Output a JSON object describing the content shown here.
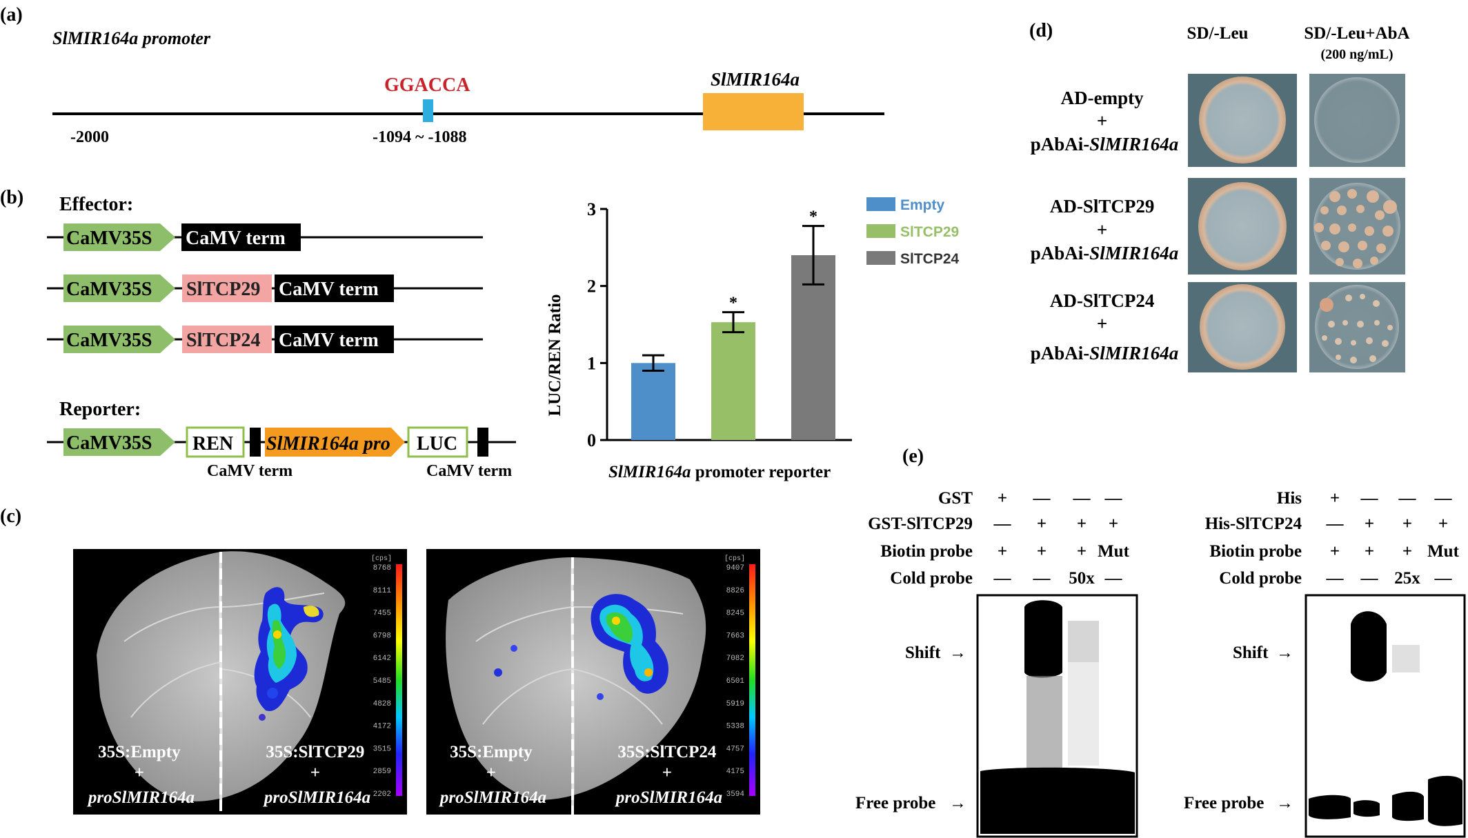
{
  "panel_a": {
    "label": "(a)",
    "title": "SlMIR164a promoter",
    "motif": "GGACCA",
    "gene": "SlMIR164a",
    "start": "-2000",
    "motif_position": "-1094 ~ -1088",
    "colors": {
      "motif_text": "#c8222a",
      "motif_box": "#2eaee0",
      "gene_box": "#f8b138"
    }
  },
  "panel_b": {
    "label": "(b)",
    "effector_title": "Effector:",
    "reporter_title": "Reporter:",
    "effectors": [
      {
        "promoter": "CaMV35S",
        "cds": "",
        "term": "CaMV term"
      },
      {
        "promoter": "CaMV35S",
        "cds": "SlTCP29",
        "term": "CaMV term"
      },
      {
        "promoter": "CaMV35S",
        "cds": "SlTCP24",
        "term": "CaMV term"
      }
    ],
    "reporter": {
      "promoter": "CaMV35S",
      "ren": "REN",
      "term1": "CaMV term",
      "pro_main": "SlMIR164a",
      "pro_suffix": " pro",
      "luc": "LUC",
      "term2": "CaMV term"
    },
    "colors": {
      "promoter": "#8fbe6a",
      "cds": "#f3a5a3",
      "term": "#000000",
      "pro": "#f39a1f",
      "box_border": "#8fbe4a"
    }
  },
  "chart_data": {
    "type": "bar",
    "categories": [
      "Empty",
      "SlTCP29",
      "SlTCP24"
    ],
    "values": [
      1.0,
      1.53,
      2.4
    ],
    "errors": [
      0.1,
      0.13,
      0.38
    ],
    "significance": [
      "",
      "*",
      "*"
    ],
    "colors": [
      "#4f8fc9",
      "#97bf68",
      "#7a7a7a"
    ],
    "ylabel": "LUC/REN Ratio",
    "xlabel_main": "SlMIR164a",
    "xlabel_rest": " promoter reporter",
    "ylim": [
      0,
      3
    ],
    "yticks": [
      "0",
      "1",
      "2",
      "3"
    ],
    "legend": [
      "Empty",
      "SlTCP29",
      "SlTCP24"
    ],
    "legend_position": "top-right"
  },
  "panel_c": {
    "label": "(c)",
    "left_image": {
      "left_label": [
        "35S:Empty",
        "+",
        "proSlMIR164a"
      ],
      "right_label": [
        "35S:SlTCP29",
        "+",
        "proSlMIR164a"
      ],
      "scale_unit": "[cps]",
      "scale_ticks": [
        "8768",
        "8111",
        "7455",
        "6798",
        "6142",
        "5485",
        "4828",
        "4172",
        "3515",
        "2859",
        "2202"
      ]
    },
    "right_image": {
      "left_label": [
        "35S:Empty",
        "+",
        "proSlMIR164a"
      ],
      "right_label": [
        "35S:SlTCP24",
        "+",
        "proSlMIR164a"
      ],
      "scale_unit": "[cps]",
      "scale_ticks": [
        "9407",
        "8826",
        "8245",
        "7663",
        "7082",
        "6501",
        "5919",
        "5338",
        "4757",
        "4175",
        "3594"
      ]
    }
  },
  "panel_d": {
    "label": "(d)",
    "col1": "SD/-Leu",
    "col2": "SD/-Leu+AbA",
    "col2_sub": "(200 ng/mL)",
    "rows": [
      {
        "ad": "AD-empty",
        "plus": "+",
        "bait_prefix": "pAbAi-",
        "bait_gene": "SlMIR164a"
      },
      {
        "ad": "AD-SlTCP29",
        "plus": "+",
        "bait_prefix": "pAbAi-",
        "bait_gene": "SlMIR164a"
      },
      {
        "ad": "AD-SlTCP24",
        "plus": "+",
        "bait_prefix": "pAbAi-",
        "bait_gene": "SlMIR164a"
      }
    ]
  },
  "panel_e": {
    "label": "(e)",
    "left": {
      "row_labels": [
        "GST",
        "GST-SlTCP29",
        "Biotin probe",
        "Cold probe"
      ],
      "lanes": [
        [
          "+",
          "—",
          "—",
          "—"
        ],
        [
          "—",
          "+",
          "+",
          "+"
        ],
        [
          "+",
          "+",
          "+",
          "Mut"
        ],
        [
          "—",
          "—",
          "50x",
          "—"
        ]
      ],
      "shift": "Shift",
      "free": "Free probe"
    },
    "right": {
      "row_labels": [
        "His",
        "His-SlTCP24",
        "Biotin probe",
        "Cold probe"
      ],
      "lanes": [
        [
          "+",
          "—",
          "—",
          "—"
        ],
        [
          "—",
          "+",
          "+",
          "+"
        ],
        [
          "+",
          "+",
          "+",
          "Mut"
        ],
        [
          "—",
          "—",
          "25x",
          "—"
        ]
      ],
      "shift": "Shift",
      "free": "Free probe"
    }
  }
}
